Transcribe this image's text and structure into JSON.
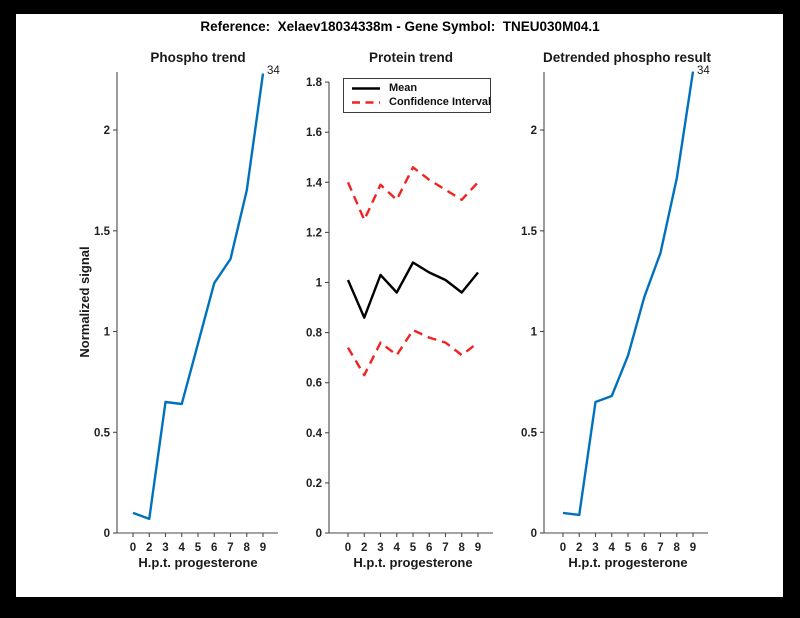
{
  "figure_title": "Reference:  Xelaev18034338m - Gene Symbol:  TNEU030M04.1",
  "colors": {
    "line_blue": "#0072BD",
    "line_red": "#F32222",
    "line_black": "#000000",
    "axis": "#4a4a4a",
    "text": "#212121",
    "figure_bg": "#ffffff",
    "page_bg": "#000000"
  },
  "chart_data": [
    {
      "type": "line",
      "title": "Phospho trend",
      "xlabel": "H.p.t. progesterone",
      "ylabel": "Normalized signal",
      "x": [
        0,
        2,
        3,
        4,
        5,
        6,
        7,
        8,
        9
      ],
      "xticks": [
        "0",
        "2",
        "3",
        "4",
        "5",
        "6",
        "7",
        "8",
        "9"
      ],
      "yticks": [
        "0",
        "0.5",
        "1",
        "1.5",
        "2"
      ],
      "ylim": [
        0,
        2.29
      ],
      "values": [
        0.1,
        0.07,
        0.65,
        0.64,
        0.94,
        1.24,
        1.36,
        1.7,
        2.28
      ],
      "annotation": "34",
      "color_key": "line_blue",
      "line_name": "phospho-line",
      "grid": false
    },
    {
      "type": "line",
      "title": "Protein trend",
      "xlabel": "H.p.t. progesterone",
      "x": [
        0,
        2,
        3,
        4,
        5,
        6,
        7,
        8,
        9
      ],
      "xticks": [
        "0",
        "2",
        "3",
        "4",
        "5",
        "6",
        "7",
        "8",
        "9"
      ],
      "yticks": [
        "0",
        "0.2",
        "0.4",
        "0.6",
        "0.8",
        "1",
        "1.2",
        "1.4",
        "1.6",
        "1.8"
      ],
      "ylim": [
        0,
        1.8
      ],
      "series": [
        {
          "name": "Mean",
          "values": [
            1.01,
            0.86,
            1.03,
            0.96,
            1.08,
            1.04,
            1.01,
            0.96,
            1.04
          ],
          "color_key": "line_black",
          "style": "solid",
          "line_name": "mean-line"
        },
        {
          "name": "Confidence Interval upper",
          "values": [
            1.4,
            1.25,
            1.39,
            1.33,
            1.46,
            1.41,
            1.37,
            1.33,
            1.4
          ],
          "color_key": "line_red",
          "style": "dashed",
          "line_name": "ci-upper-line"
        },
        {
          "name": "Confidence Interval lower",
          "values": [
            0.74,
            0.63,
            0.76,
            0.71,
            0.81,
            0.78,
            0.76,
            0.71,
            0.76
          ],
          "color_key": "line_red",
          "style": "dashed",
          "line_name": "ci-lower-line"
        }
      ],
      "legend": {
        "entries": [
          "Mean",
          "Confidence Interval"
        ],
        "position": "top-left"
      },
      "grid": false
    },
    {
      "type": "line",
      "title": "Detrended phospho result",
      "xlabel": "H.p.t. progesterone",
      "x": [
        0,
        2,
        3,
        4,
        5,
        6,
        7,
        8,
        9
      ],
      "xticks": [
        "0",
        "2",
        "3",
        "4",
        "5",
        "6",
        "7",
        "8",
        "9"
      ],
      "yticks": [
        "0",
        "0.5",
        "1",
        "1.5",
        "2"
      ],
      "ylim": [
        0,
        2.29
      ],
      "values": [
        0.1,
        0.09,
        0.65,
        0.68,
        0.88,
        1.17,
        1.39,
        1.76,
        2.29
      ],
      "annotation": "34",
      "color_key": "line_blue",
      "line_name": "detrended-line",
      "grid": false
    }
  ]
}
